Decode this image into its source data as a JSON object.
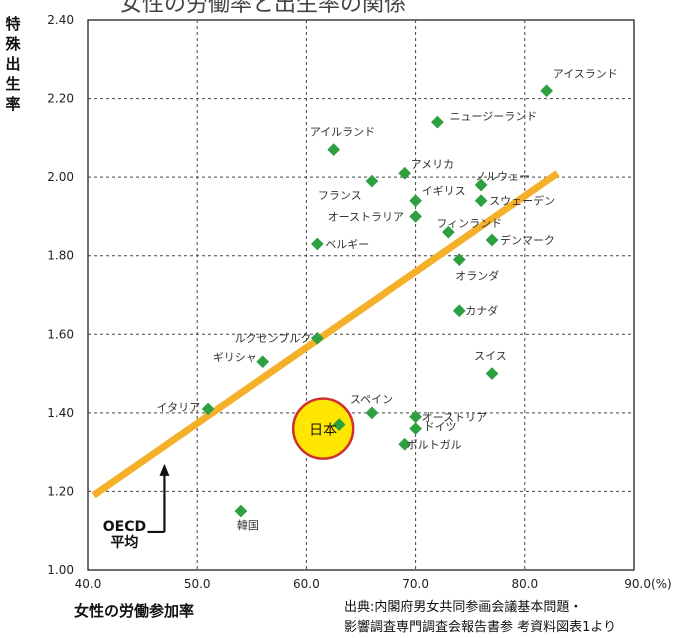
{
  "title_fragment": "女性の労働率と出生率の関係",
  "ylabel": "特殊出生率",
  "xlabel": "女性の労働参加率",
  "source_lines": [
    "出典:内閣府男女共同参画会議基本問題・",
    "影響調査専門調査会報告書参 考資料図表1より"
  ],
  "colors": {
    "point": "#2ea040",
    "trend": "#f5b02a",
    "japan_fill": "#ffe600",
    "japan_ring": "#d03030",
    "grid": "#444444"
  },
  "chart_data": {
    "type": "scatter",
    "xlim": [
      40,
      90
    ],
    "ylim": [
      1.0,
      2.4
    ],
    "x_ticks": [
      "40.0",
      "50.0",
      "60.0",
      "70.0",
      "80.0",
      "90.0(%)"
    ],
    "y_ticks": [
      "1.00",
      "1.20",
      "1.40",
      "1.60",
      "1.80",
      "2.00",
      "2.20",
      "2.40"
    ],
    "grid": true,
    "points": [
      {
        "label": "アイスランド",
        "x": 82.0,
        "y": 2.22
      },
      {
        "label": "ニュージーランド",
        "x": 72.0,
        "y": 2.14
      },
      {
        "label": "アイルランド",
        "x": 62.5,
        "y": 2.07
      },
      {
        "label": "アメリカ",
        "x": 69.0,
        "y": 2.01
      },
      {
        "label": "ノルウェー",
        "x": 76.0,
        "y": 1.98
      },
      {
        "label": "フランス",
        "x": 66.0,
        "y": 1.99
      },
      {
        "label": "イギリス",
        "x": 70.0,
        "y": 1.94
      },
      {
        "label": "スウェーデン",
        "x": 76.0,
        "y": 1.94
      },
      {
        "label": "オーストラリア",
        "x": 70.0,
        "y": 1.9
      },
      {
        "label": "フィンランド",
        "x": 73.0,
        "y": 1.86
      },
      {
        "label": "ベルギー",
        "x": 61.0,
        "y": 1.83
      },
      {
        "label": "デンマーク",
        "x": 77.0,
        "y": 1.84
      },
      {
        "label": "オランダ",
        "x": 74.0,
        "y": 1.79
      },
      {
        "label": "カナダ",
        "x": 74.0,
        "y": 1.66
      },
      {
        "label": "ルクセンブルク",
        "x": 61.0,
        "y": 1.59
      },
      {
        "label": "ギリシャ",
        "x": 56.0,
        "y": 1.53
      },
      {
        "label": "スイス",
        "x": 77.0,
        "y": 1.5
      },
      {
        "label": "イタリア",
        "x": 51.0,
        "y": 1.41
      },
      {
        "label": "スペイン",
        "x": 66.0,
        "y": 1.4
      },
      {
        "label": "オーストリア",
        "x": 70.0,
        "y": 1.39
      },
      {
        "label": "日本",
        "x": 63.0,
        "y": 1.37
      },
      {
        "label": "ドイツ",
        "x": 70.0,
        "y": 1.36
      },
      {
        "label": "ポルトガル",
        "x": 69.0,
        "y": 1.32
      },
      {
        "label": "韓国",
        "x": 54.0,
        "y": 1.15
      }
    ],
    "trendline": {
      "x": [
        40.5,
        83.0
      ],
      "y": [
        1.19,
        2.01
      ]
    },
    "highlight": {
      "label": "日本",
      "x": 63.0,
      "y": 1.37
    },
    "annotation": {
      "text_lines": [
        "OECD",
        "平均"
      ],
      "x": 47.0,
      "y": 1.27
    }
  }
}
